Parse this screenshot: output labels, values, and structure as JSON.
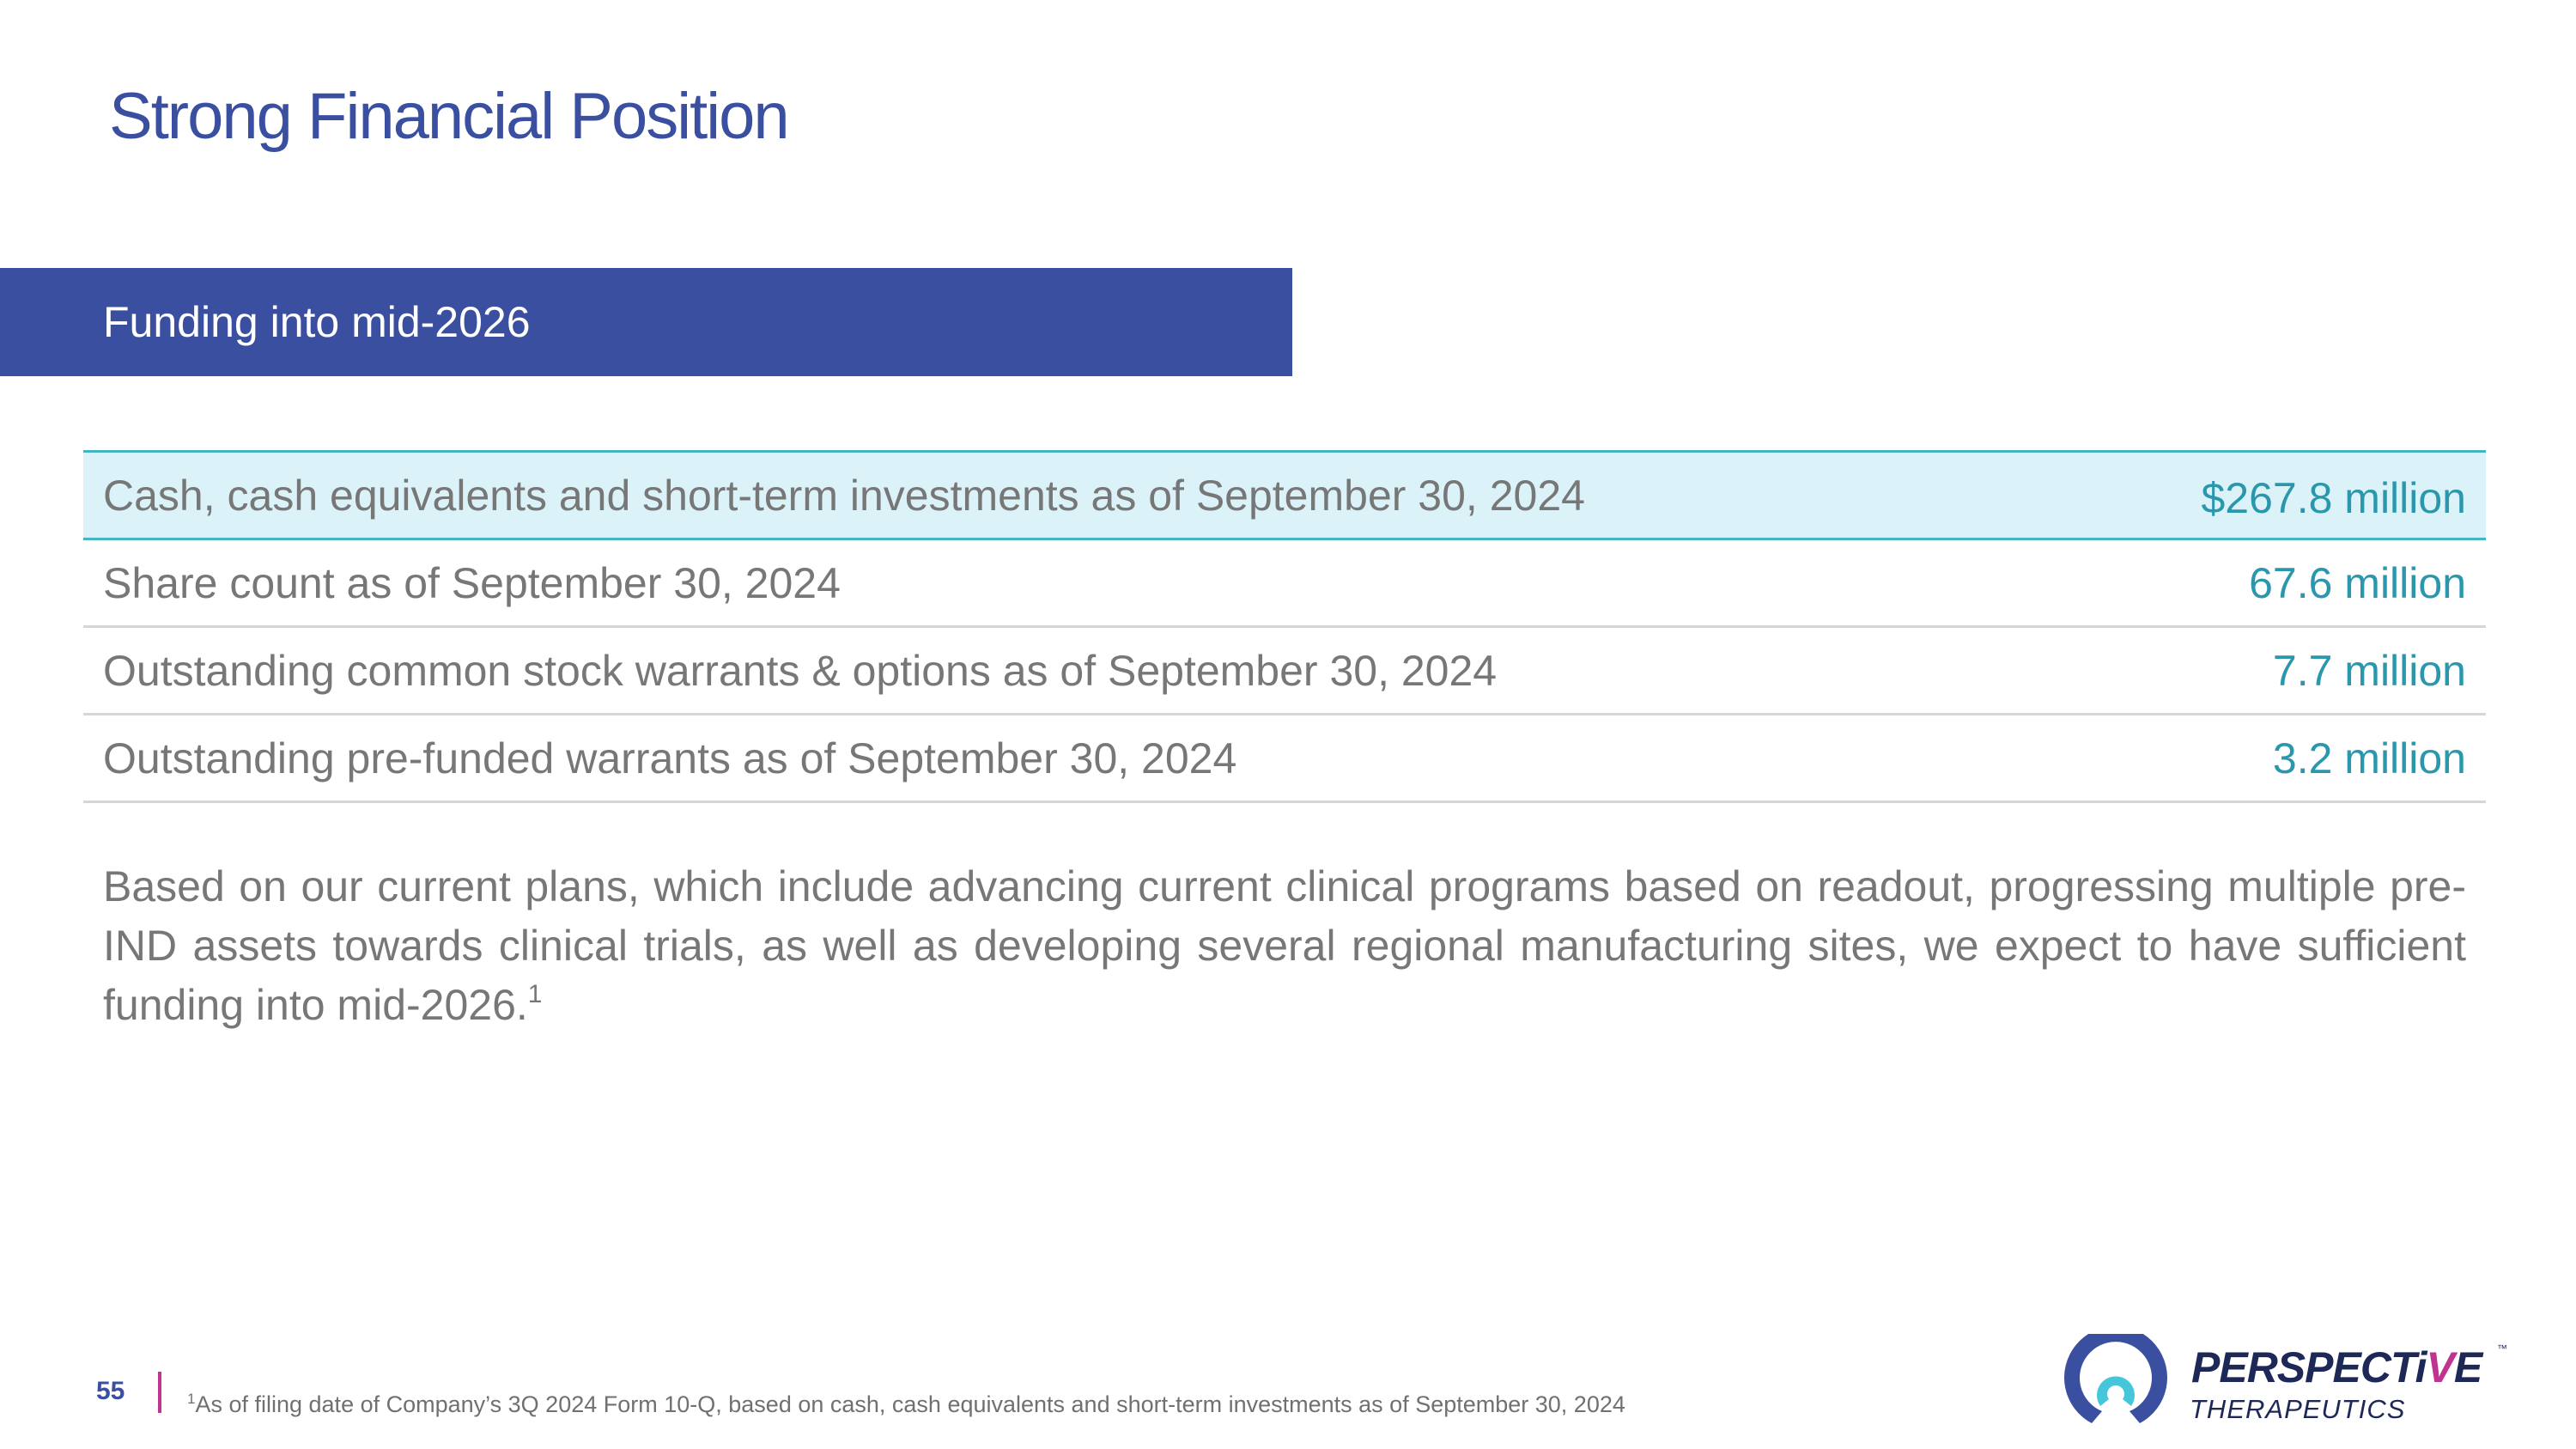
{
  "slide": {
    "title": "Strong Financial Position",
    "banner": "Funding into mid-2026",
    "page_number": "55"
  },
  "table": {
    "rows": [
      {
        "label": "Cash, cash equivalents and short-term investments as of September 30, 2024",
        "value": "$267.8 million",
        "highlighted": true
      },
      {
        "label": "Share count as of September 30, 2024",
        "value": "67.6 million",
        "highlighted": false
      },
      {
        "label": "Outstanding common stock warrants & options as of September 30, 2024",
        "value": "7.7 million",
        "highlighted": false
      },
      {
        "label": "Outstanding pre-funded warrants as of September 30, 2024",
        "value": "3.2 million",
        "highlighted": false
      }
    ]
  },
  "paragraph": {
    "text": "Based on our current plans, which include advancing current clinical programs based on readout, progressing multiple pre-IND assets towards clinical trials, as well as developing several regional manufacturing sites, we expect to have sufficient funding into mid-2026.",
    "footnote_ref": "1"
  },
  "footnote": {
    "marker": "1",
    "text": "As of filing date of Company’s 3Q 2024 Form 10-Q, based on cash, cash equivalents and short-term investments as of September 30, 2024"
  },
  "logo": {
    "word1_part1": "PERSPECTi",
    "word1_accent": "V",
    "word1_part2": "E",
    "trademark": "™",
    "word2": "THERAPEUTICS"
  },
  "colors": {
    "brand_blue": "#3b4fa0",
    "teal_value": "#2a97ad",
    "highlight_bg": "#dbf3f8",
    "accent_magenta": "#c0338f",
    "logo_cyan": "#46c6da"
  }
}
